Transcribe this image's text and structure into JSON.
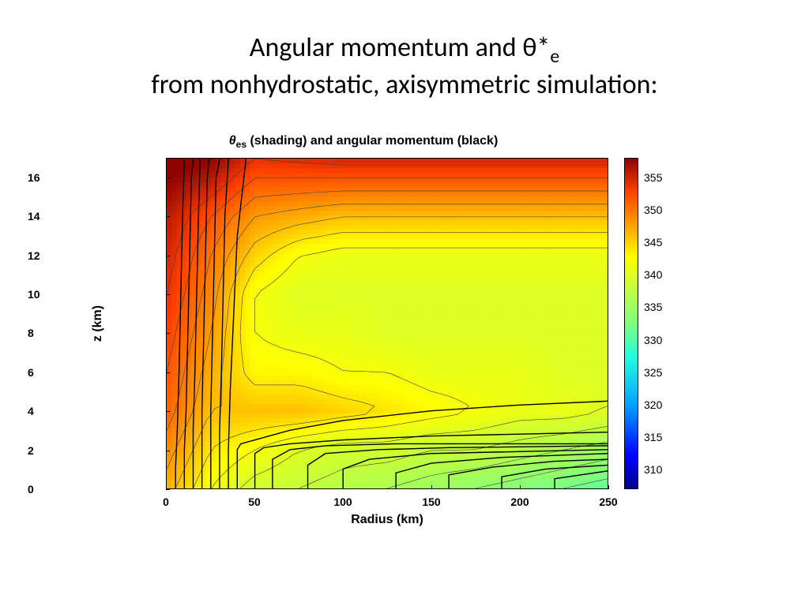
{
  "slide": {
    "title_line1": "Angular momentum and θ*",
    "title_sub": "e",
    "title_line2": "from nonhydrostatic, axisymmetric simulation:"
  },
  "chart": {
    "type": "filled-contour-with-overlay-contours",
    "title_prefix": "θ",
    "title_sub": "es",
    "title_rest": " (shading) and angular momentum (black)",
    "xlabel": "Radius (km)",
    "ylabel": "z (km)",
    "xlim": [
      0,
      250
    ],
    "ylim": [
      0,
      17
    ],
    "xticks": [
      0,
      50,
      100,
      150,
      200,
      250
    ],
    "yticks": [
      0,
      2,
      4,
      6,
      8,
      10,
      12,
      14,
      16
    ],
    "tick_fontsize": 14,
    "label_fontsize": 16,
    "title_fontsize": 16,
    "background_color": "#ffffff",
    "colorbar": {
      "min": 307,
      "max": 358,
      "ticks": [
        310,
        315,
        320,
        325,
        330,
        335,
        340,
        345,
        350,
        355
      ],
      "gradient": [
        {
          "stop": 0.0,
          "color": "#00008f"
        },
        {
          "stop": 0.1,
          "color": "#0000ff"
        },
        {
          "stop": 0.25,
          "color": "#00a0ff"
        },
        {
          "stop": 0.4,
          "color": "#20ffdf"
        },
        {
          "stop": 0.5,
          "color": "#7fff7f"
        },
        {
          "stop": 0.6,
          "color": "#bfff40"
        },
        {
          "stop": 0.7,
          "color": "#ffff00"
        },
        {
          "stop": 0.8,
          "color": "#ff9f00"
        },
        {
          "stop": 0.9,
          "color": "#ff4000"
        },
        {
          "stop": 1.0,
          "color": "#8f0000"
        }
      ]
    },
    "shading_field": {
      "comment": "theta_es values on a coarse grid [z_idx][r_idx], z rows top(16km) to bottom(0km), r cols 0..250km",
      "r_samples": [
        0,
        25,
        50,
        75,
        100,
        125,
        150,
        175,
        200,
        225,
        250
      ],
      "z_samples": [
        16,
        14,
        12,
        10,
        8,
        6,
        4,
        2,
        0
      ],
      "values": [
        [
          358,
          356,
          352,
          352,
          352,
          352,
          352,
          352,
          352,
          352,
          352
        ],
        [
          356,
          352,
          348,
          347,
          346,
          346,
          346,
          346,
          346,
          346,
          346
        ],
        [
          355,
          350,
          345,
          342,
          341,
          341,
          341,
          341,
          341,
          341,
          341
        ],
        [
          354,
          349,
          342,
          340,
          340,
          340,
          340,
          340,
          340,
          340,
          340
        ],
        [
          353,
          348,
          342,
          341,
          341,
          340,
          340,
          340,
          340,
          340,
          340
        ],
        [
          352,
          347,
          343,
          343,
          342,
          342,
          341,
          341,
          341,
          340,
          340
        ],
        [
          351,
          346,
          346,
          346,
          345,
          344,
          343,
          342,
          341,
          341,
          340
        ],
        [
          349,
          344,
          342,
          340,
          339,
          339,
          338,
          338,
          337,
          336,
          335
        ],
        [
          347,
          342,
          339,
          338,
          337,
          336,
          335,
          334,
          333,
          332,
          331
        ]
      ]
    },
    "theta_contour_levels": [
      332,
      334,
      336,
      338,
      340,
      342,
      344,
      346,
      348,
      350,
      352,
      354,
      356
    ],
    "theta_contour_color": "#404040",
    "theta_contour_width": 0.6,
    "angular_momentum_contours": {
      "color": "#000000",
      "line_width": 1.4,
      "comment": "M surfaces: near-vertical in eyewall r~20-40km, fanning outward to constant-r at large radius; polylines in (r_km, z_km)",
      "lines": [
        [
          [
            5,
            0
          ],
          [
            5,
            1
          ],
          [
            6,
            3
          ],
          [
            7,
            6
          ],
          [
            8,
            10
          ],
          [
            9,
            14
          ],
          [
            10,
            17
          ]
        ],
        [
          [
            10,
            0
          ],
          [
            10,
            2
          ],
          [
            11,
            4
          ],
          [
            12,
            8
          ],
          [
            13,
            12
          ],
          [
            14,
            16
          ],
          [
            15,
            17
          ]
        ],
        [
          [
            15,
            0
          ],
          [
            15,
            3
          ],
          [
            16,
            6
          ],
          [
            17,
            10
          ],
          [
            18,
            14
          ],
          [
            19,
            17
          ]
        ],
        [
          [
            20,
            0
          ],
          [
            20,
            4
          ],
          [
            21,
            8
          ],
          [
            22,
            12
          ],
          [
            23,
            16
          ],
          [
            24,
            17
          ]
        ],
        [
          [
            25,
            0
          ],
          [
            25,
            4
          ],
          [
            26,
            8
          ],
          [
            27,
            12
          ],
          [
            28,
            16
          ],
          [
            30,
            17
          ]
        ],
        [
          [
            30,
            0
          ],
          [
            30,
            3
          ],
          [
            31,
            6
          ],
          [
            32,
            10
          ],
          [
            33,
            14
          ],
          [
            35,
            17
          ]
        ],
        [
          [
            35,
            0
          ],
          [
            35,
            2
          ],
          [
            36,
            5
          ],
          [
            38,
            9
          ],
          [
            40,
            13
          ],
          [
            45,
            17
          ]
        ],
        [
          [
            40,
            0
          ],
          [
            40,
            2
          ],
          [
            42,
            2.3
          ],
          [
            50,
            2.5
          ],
          [
            70,
            3
          ],
          [
            100,
            3.5
          ],
          [
            150,
            4
          ],
          [
            200,
            4.3
          ],
          [
            250,
            4.5
          ]
        ],
        [
          [
            50,
            0
          ],
          [
            50,
            1.8
          ],
          [
            55,
            2.1
          ],
          [
            70,
            2.3
          ],
          [
            100,
            2.5
          ],
          [
            150,
            2.7
          ],
          [
            200,
            2.8
          ],
          [
            250,
            2.9
          ]
        ],
        [
          [
            60,
            0
          ],
          [
            60,
            1.5
          ],
          [
            70,
            2.0
          ],
          [
            90,
            2.2
          ],
          [
            130,
            2.3
          ],
          [
            180,
            2.3
          ],
          [
            250,
            2.3
          ]
        ],
        [
          [
            80,
            0
          ],
          [
            80,
            1.2
          ],
          [
            90,
            1.8
          ],
          [
            120,
            2.0
          ],
          [
            160,
            2.1
          ],
          [
            250,
            2.2
          ]
        ],
        [
          [
            100,
            0
          ],
          [
            100,
            1.0
          ],
          [
            115,
            1.5
          ],
          [
            150,
            1.8
          ],
          [
            200,
            1.9
          ],
          [
            250,
            2.0
          ]
        ],
        [
          [
            130,
            0
          ],
          [
            130,
            0.8
          ],
          [
            150,
            1.3
          ],
          [
            190,
            1.6
          ],
          [
            250,
            1.8
          ]
        ],
        [
          [
            160,
            0
          ],
          [
            160,
            0.7
          ],
          [
            185,
            1.1
          ],
          [
            220,
            1.4
          ],
          [
            250,
            1.5
          ]
        ],
        [
          [
            190,
            0
          ],
          [
            190,
            0.6
          ],
          [
            215,
            1.0
          ],
          [
            250,
            1.2
          ]
        ],
        [
          [
            220,
            0
          ],
          [
            220,
            0.5
          ],
          [
            250,
            0.9
          ]
        ]
      ]
    }
  }
}
